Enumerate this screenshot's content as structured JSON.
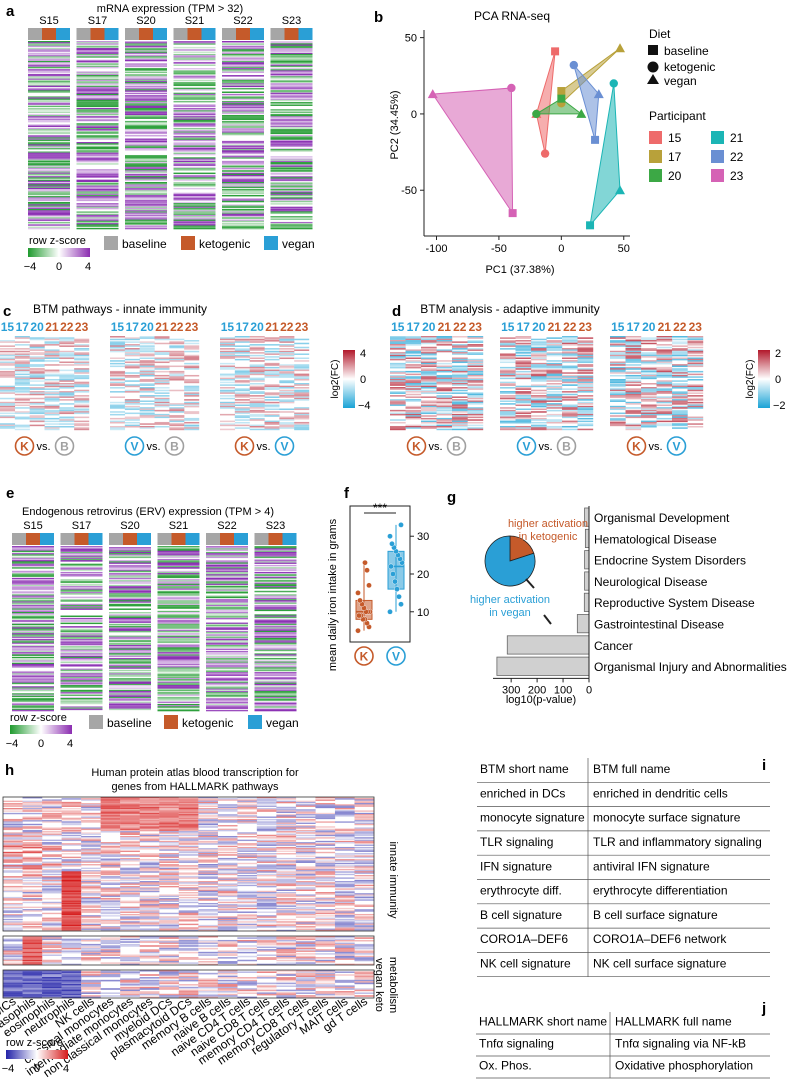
{
  "figure": {
    "panel_a": {
      "label": "a",
      "title": "mRNA expression (TPM > 32)",
      "participants": [
        "S15",
        "S17",
        "S20",
        "S21",
        "S22",
        "S23"
      ],
      "scale_title": "row z-score",
      "scale_ticks": [
        "−4",
        "0",
        "4"
      ],
      "legend": [
        "baseline",
        "ketogenic",
        "vegan"
      ]
    },
    "panel_b": {
      "label": "b",
      "diet_title": "Diet",
      "diet_items": [
        "baseline",
        "ketogenic",
        "vegan"
      ],
      "participant_title": "Participant"
    },
    "panel_c": {
      "label": "c",
      "title": "BTM pathways - innate immunity",
      "col_labels": [
        "15",
        "17",
        "20",
        "21",
        "22",
        "23"
      ],
      "comparisons": [
        {
          "a": "K",
          "vs": "vs.",
          "b": "B"
        },
        {
          "a": "V",
          "vs": "vs.",
          "b": "B"
        },
        {
          "a": "K",
          "vs": "vs.",
          "b": "V"
        }
      ],
      "scale_label": "log2(FC)",
      "scale_ticks": [
        "4",
        "0",
        "−4"
      ]
    },
    "panel_d": {
      "label": "d",
      "title": "BTM analysis - adaptive immunity",
      "col_labels": [
        "15",
        "17",
        "20",
        "21",
        "22",
        "23"
      ],
      "comparisons": [
        {
          "a": "K",
          "vs": "vs.",
          "b": "B"
        },
        {
          "a": "V",
          "vs": "vs.",
          "b": "B"
        },
        {
          "a": "K",
          "vs": "vs.",
          "b": "V"
        }
      ],
      "scale_label": "log2(FC)",
      "scale_ticks": [
        "2",
        "0",
        "−2"
      ]
    },
    "panel_e": {
      "label": "e",
      "title": "Endogenous retrovirus (ERV) expression (TPM > 4)",
      "participants": [
        "S15",
        "S17",
        "S20",
        "S21",
        "S22",
        "S23"
      ],
      "scale_title": "row z-score",
      "scale_ticks": [
        "−4",
        "0",
        "4"
      ],
      "legend": [
        "baseline",
        "ketogenic",
        "vegan"
      ]
    },
    "panel_f": {
      "label": "f",
      "group_labels": [
        "K",
        "V"
      ]
    },
    "panel_g": {
      "label": "g"
    },
    "panel_h": {
      "label": "h",
      "title_line1": "Human protein atlas blood transcription for",
      "title_line2": "genes from HALLMARK pathways",
      "row_groups": [
        "innate immunity",
        "metabolism",
        "vegan",
        "keto"
      ],
      "cell_types": [
        "total PBMCs",
        "basophils",
        "eosinophils",
        "neutrophils",
        "NK cells",
        "classical monocytes",
        "intermediate monocytes",
        "non classical monocytes",
        "myeloid DCs",
        "plasmacytoid DCs",
        "memory B cells",
        "naive B cells",
        "naive CD4 T cells",
        "naive CD8 T cells",
        "memory CD4 T cells",
        "memory CD8 T cells",
        "regulatory T cells",
        "MAIT cells",
        "gd T cells"
      ],
      "scale_title": "row z-score",
      "scale_ticks": [
        "−4",
        "0",
        "4"
      ]
    },
    "panel_i": {
      "label": "i",
      "header": [
        "BTM short name",
        "BTM full name"
      ],
      "rows": [
        [
          "enriched in DCs",
          "enriched in dendritic cells"
        ],
        [
          "monocyte signature",
          "monocyte surface signature"
        ],
        [
          "TLR signaling",
          "TLR and inflammatory signaling"
        ],
        [
          "IFN signature",
          "antiviral IFN signature"
        ],
        [
          "erythrocyte diff.",
          "erythrocyte differentiation"
        ],
        [
          "B cell signature",
          "B cell surface signature"
        ],
        [
          "CORO1A–DEF6",
          "CORO1A–DEF6 network"
        ],
        [
          "NK cell signature",
          "NK cell surface signature"
        ]
      ]
    },
    "panel_j": {
      "label": "j",
      "header": [
        "HALLMARK short name",
        "HALLMARK full name"
      ],
      "rows": [
        [
          "Tnfα signaling",
          "Tnfα signaling via NF-kB"
        ],
        [
          "Ox. Phos.",
          "Oxidative phosphorylation"
        ]
      ]
    }
  },
  "chart_data": [
    {
      "type": "scatter",
      "panel": "b",
      "title": "PCA RNA-seq",
      "xlabel": "PC1 (37.38%)",
      "ylabel": "PC2 (34.45%)",
      "xlim": [
        -110,
        55
      ],
      "ylim": [
        -80,
        55
      ],
      "xticks": [
        -100,
        -50,
        0,
        50
      ],
      "yticks": [
        -50,
        0,
        50
      ],
      "legend_title": "Participant",
      "diets": [
        "baseline",
        "ketogenic",
        "vegan"
      ],
      "series": [
        {
          "name": "15",
          "color": "#ee6b6b",
          "points": [
            {
              "diet": "baseline",
              "x": -5,
              "y": 41
            },
            {
              "diet": "ketogenic",
              "x": -13,
              "y": -26
            },
            {
              "diet": "vegan",
              "x": -20,
              "y": 0
            }
          ]
        },
        {
          "name": "17",
          "color": "#b8a13a",
          "points": [
            {
              "diet": "baseline",
              "x": 0,
              "y": 15
            },
            {
              "diet": "ketogenic",
              "x": 0,
              "y": 7
            },
            {
              "diet": "vegan",
              "x": 47,
              "y": 43
            }
          ]
        },
        {
          "name": "20",
          "color": "#3ca845",
          "points": [
            {
              "diet": "baseline",
              "x": 0,
              "y": 10
            },
            {
              "diet": "ketogenic",
              "x": -20,
              "y": 0
            },
            {
              "diet": "vegan",
              "x": 16,
              "y": 0
            }
          ]
        },
        {
          "name": "21",
          "color": "#1bb5b5",
          "points": [
            {
              "diet": "baseline",
              "x": 23,
              "y": -73
            },
            {
              "diet": "ketogenic",
              "x": 42,
              "y": 20
            },
            {
              "diet": "vegan",
              "x": 47,
              "y": -50
            }
          ]
        },
        {
          "name": "22",
          "color": "#6a8fd3",
          "points": [
            {
              "diet": "baseline",
              "x": 27,
              "y": -17
            },
            {
              "diet": "ketogenic",
              "x": 10,
              "y": 32
            },
            {
              "diet": "vegan",
              "x": 30,
              "y": 13
            }
          ]
        },
        {
          "name": "23",
          "color": "#d562b5",
          "points": [
            {
              "diet": "baseline",
              "x": -39,
              "y": -65
            },
            {
              "diet": "ketogenic",
              "x": -40,
              "y": 17
            },
            {
              "diet": "vegan",
              "x": -103,
              "y": 13
            }
          ]
        }
      ]
    },
    {
      "type": "box",
      "panel": "f",
      "ylabel": "mean daily iron intake in grams",
      "ylim": [
        2,
        38
      ],
      "yticks": [
        10,
        20,
        30
      ],
      "significance": "***",
      "groups": [
        {
          "name": "K",
          "color": "#c55a2a",
          "q1": 8,
          "median": 10,
          "q3": 13,
          "whisker_low": 5,
          "whisker_high": 23,
          "points": [
            5,
            6,
            7,
            8,
            8,
            9,
            9,
            10,
            10,
            10,
            11,
            12,
            13,
            15,
            17,
            21,
            23
          ]
        },
        {
          "name": "V",
          "color": "#2a9fd6",
          "q1": 16,
          "median": 22,
          "q3": 26,
          "whisker_low": 10,
          "whisker_high": 33,
          "points": [
            10,
            12,
            14,
            16,
            18,
            20,
            22,
            23,
            24,
            25,
            26,
            27,
            28,
            30,
            33
          ]
        }
      ]
    },
    {
      "type": "bar",
      "panel": "g",
      "orientation": "horizontal",
      "xlabel": "log10(p-value)",
      "xticks": [
        300,
        200,
        100,
        0
      ],
      "categories": [
        "Organismal Development",
        "Hematological Disease",
        "Endocrine System Disorders",
        "Neurological Disease",
        "Reproductive System Disease",
        "Gastrointestinal Disease",
        "Cancer",
        "Organismal Injury and Abnormalities"
      ],
      "values": [
        17,
        14,
        17,
        17,
        18,
        45,
        315,
        355
      ],
      "pie": {
        "title": "",
        "slices": [
          {
            "label": "higher activation in ketogenic",
            "value": 20,
            "color": "#c55a2a"
          },
          {
            "label": "higher activation in vegan",
            "value": 80,
            "color": "#2a9fd6"
          }
        ]
      }
    }
  ]
}
